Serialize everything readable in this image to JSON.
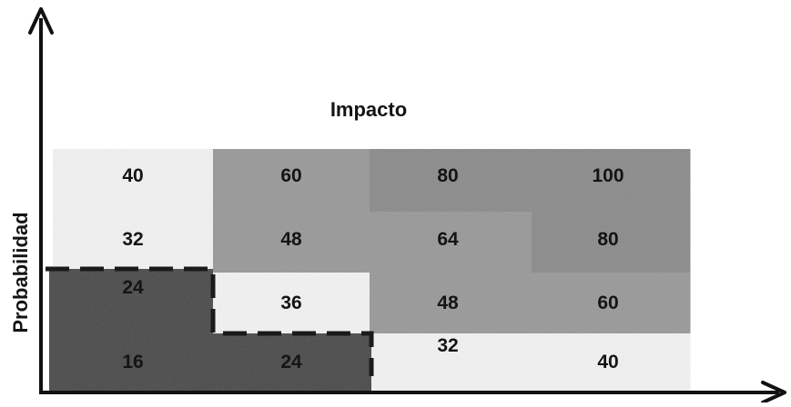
{
  "chart_data": {
    "type": "heatmap",
    "title": "Impacto",
    "xlabel": "",
    "ylabel": "Probabilidad",
    "rows": [
      [
        40,
        60,
        80,
        100
      ],
      [
        32,
        48,
        64,
        80
      ],
      [
        24,
        36,
        48,
        60
      ],
      [
        16,
        24,
        32,
        40
      ]
    ],
    "zones": {
      "low": "#f0f0f0",
      "medium": "#9a9a9a",
      "high": "#8c8c8c",
      "critical": "#4a4a4a"
    },
    "zone_map": [
      [
        "low",
        "medium",
        "high",
        "high"
      ],
      [
        "low",
        "medium",
        "medium",
        "high"
      ],
      [
        "critical",
        "low",
        "medium",
        "medium"
      ],
      [
        "critical",
        "critical",
        "low",
        "low"
      ]
    ],
    "grid": false,
    "legend": "none"
  }
}
